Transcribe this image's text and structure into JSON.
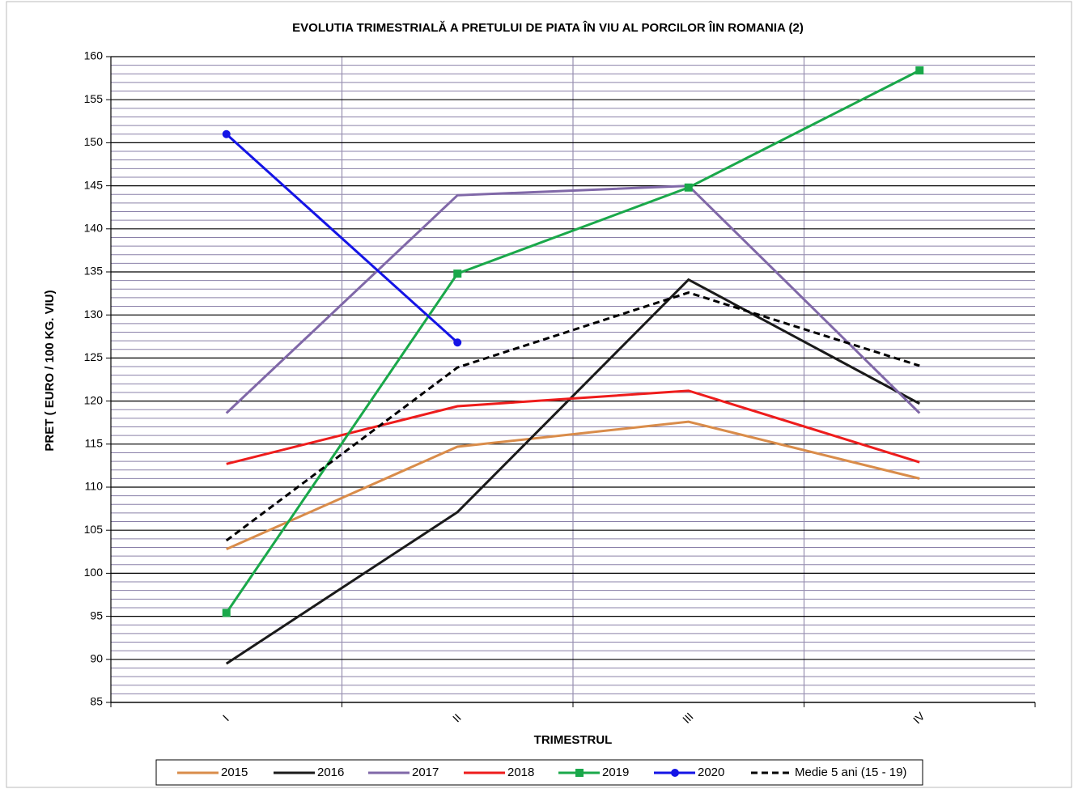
{
  "chart_data": {
    "type": "line",
    "title": "EVOLUTIA TRIMESTRIALĂ A PRETULUI  DE PIATA ÎN VIU AL PORCILOR ÎIN ROMANIA (2)",
    "x_label": "TRIMESTRUL",
    "y_label": "PRET ( EURO / 100 KG. VIU)",
    "categories": [
      "I",
      "II",
      "III",
      "IV"
    ],
    "series": [
      {
        "name": "2015",
        "color": "#d98c4a",
        "values": [
          102.8,
          114.7,
          117.6,
          111.0
        ]
      },
      {
        "name": "2016",
        "color": "#1a1a1a",
        "values": [
          89.5,
          107.1,
          134.1,
          119.7
        ]
      },
      {
        "name": "2017",
        "color": "#8068a8",
        "values": [
          118.6,
          143.9,
          145.0,
          118.6
        ]
      },
      {
        "name": "2018",
        "color": "#ee1c1c",
        "values": [
          112.7,
          119.4,
          121.2,
          112.9
        ]
      },
      {
        "name": "2019",
        "color": "#1aa84a",
        "values": [
          95.4,
          134.8,
          144.8,
          158.4
        ],
        "marker": "square"
      },
      {
        "name": "2020",
        "color": "#1414e6",
        "values": [
          151.0,
          126.8,
          null,
          null
        ],
        "marker": "circle"
      },
      {
        "name": "Medie 5 ani (15 - 19)",
        "color": "#000000",
        "values": [
          103.8,
          123.9,
          132.6,
          124.1
        ],
        "dash": true
      }
    ],
    "ylim": [
      85,
      160
    ],
    "yticks": [
      85,
      90,
      95,
      100,
      105,
      110,
      115,
      120,
      125,
      130,
      135,
      140,
      145,
      150,
      155,
      160
    ],
    "grid": true,
    "legend": "bottom"
  }
}
